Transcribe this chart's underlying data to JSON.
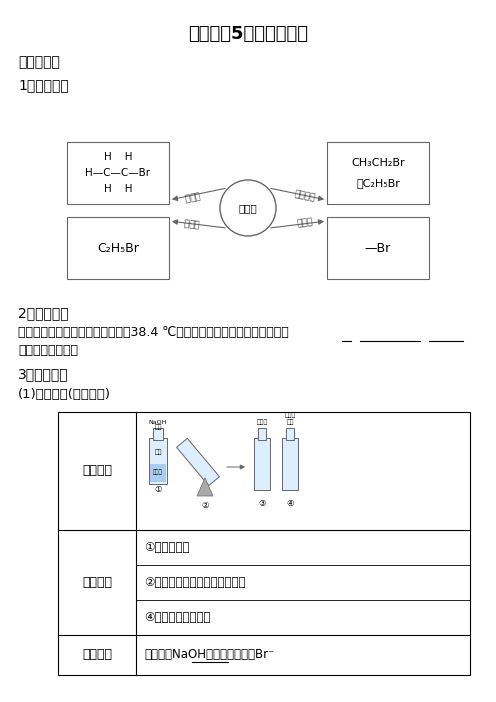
{
  "title": "高中选修5卤代烃知识点",
  "section1": "一、溴乙烷",
  "subsec1": "1．分子结构",
  "subsec2": "2．物理性质",
  "subsec3": "3．化学性质",
  "chem_subsec": "(1)取代反应(水解反应)",
  "center_label": "溴乙烷",
  "arrow_tl": "结构式",
  "arrow_tr": "结构简式",
  "arrow_bl": "分子式",
  "arrow_br": "官能团",
  "bg_color": "#ffffff",
  "text_color": "#000000"
}
